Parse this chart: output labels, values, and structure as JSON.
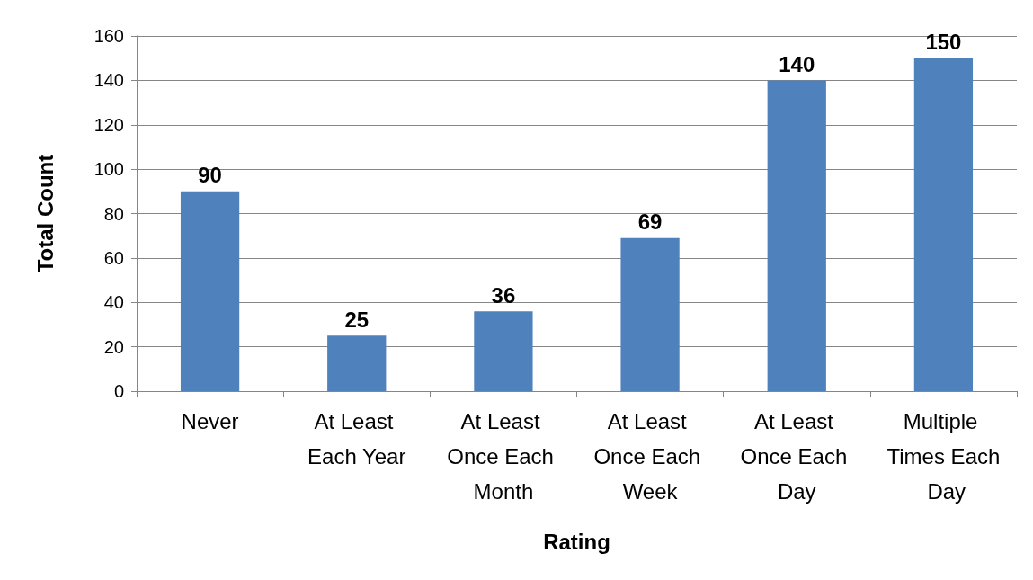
{
  "chart_data": {
    "type": "bar",
    "xlabel": "Rating",
    "ylabel": "Total Count",
    "categories": [
      "Never",
      "At Least Each Year",
      "At Least Once Each Month",
      "At Least Once Each Week",
      "At Least Once Each Day",
      "Multiple Times Each Day"
    ],
    "values": [
      90,
      25,
      36,
      69,
      140,
      150
    ],
    "color": "#4f81bd",
    "ylim": [
      0,
      160
    ],
    "yticks": [
      0,
      20,
      40,
      60,
      80,
      100,
      120,
      140,
      160
    ],
    "grid": "y",
    "data_labels": true
  }
}
